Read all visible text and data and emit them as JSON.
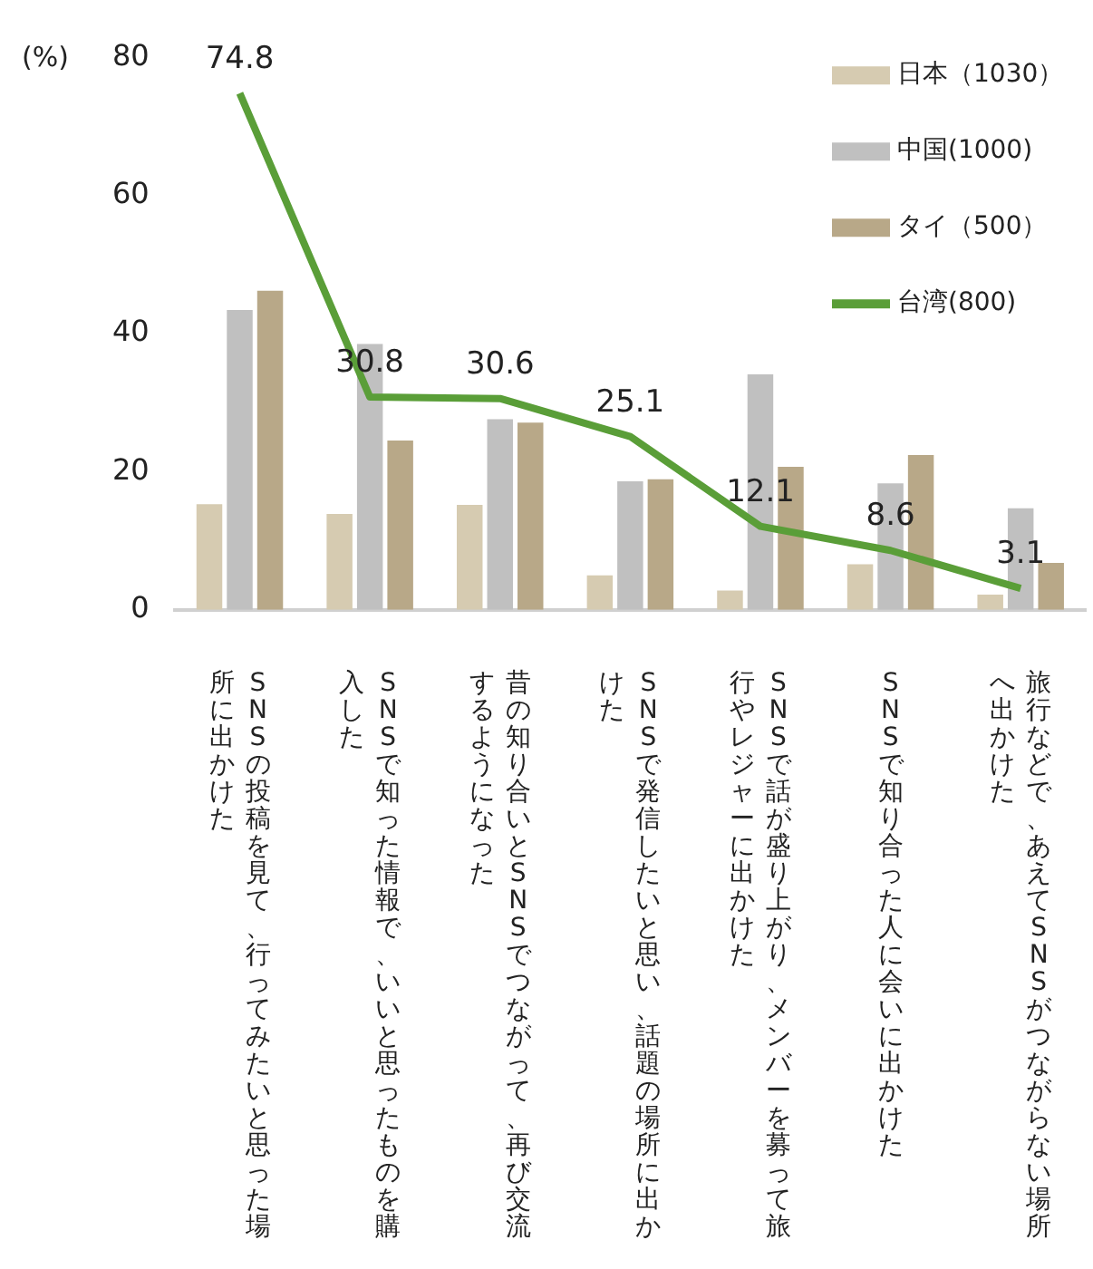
{
  "chart_data": {
    "type": "bar",
    "ylabel": "(%)",
    "categories": [
      "SNSの投稿を見て、行ってみたいと思った場所に出かけた",
      "SNSで知った情報で、いいと思ったものを購入した",
      "昔の知り合いとSNSでつながって、再び交流するようになった",
      "SNSで発信したいと思い、話題の場所に出かけた",
      "SNSで話が盛り上がり、メンバーを募って旅行やレジャーに出かけた",
      "SNSで知り合った人に会いに出かけた",
      "旅行などで、あえてSNSがつながらない場所へ出かけた"
    ],
    "series": [
      {
        "name": "日本（1030）",
        "color": "#d6cbb1",
        "values": [
          15.3,
          13.9,
          15.2,
          5.0,
          2.8,
          6.6,
          2.2
        ]
      },
      {
        "name": "中国(1000)",
        "color": "#c0c0c0",
        "values": [
          43.4,
          38.5,
          27.6,
          18.6,
          34.1,
          18.3,
          14.7
        ]
      },
      {
        "name": "タイ（500）",
        "color": "#b8a888",
        "values": [
          46.2,
          24.5,
          27.1,
          18.9,
          20.7,
          22.4,
          6.8
        ]
      },
      {
        "name": "台湾(800)",
        "type": "line",
        "color": "#5a9e38",
        "values": [
          74.8,
          30.8,
          30.6,
          25.1,
          12.1,
          8.6,
          3.1
        ],
        "value_labels": [
          "74.8",
          "30.8",
          "30.6",
          "25.1",
          "12.1",
          "8.6",
          "3.1"
        ]
      }
    ],
    "ylim": [
      0,
      80
    ],
    "yticks": [
      0,
      20,
      40,
      60,
      80
    ],
    "grid": false,
    "legend": "top right",
    "marker": "none",
    "line_style": "solid"
  }
}
